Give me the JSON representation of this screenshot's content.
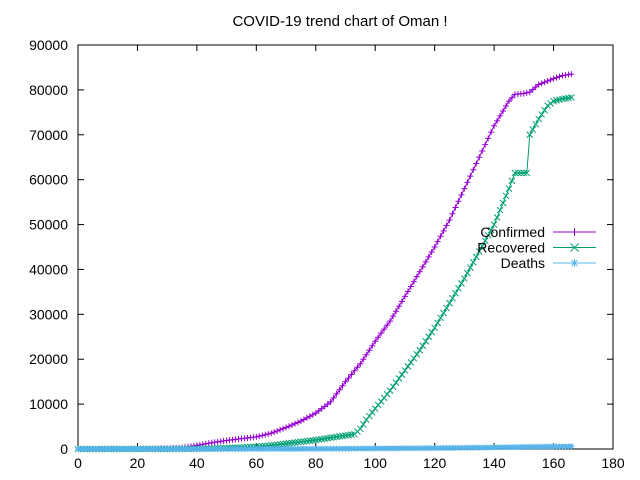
{
  "chart_data": {
    "type": "line",
    "title": "COVID-19 trend chart of Oman !",
    "xlabel": "",
    "ylabel": "",
    "xlim": [
      0,
      180
    ],
    "ylim": [
      0,
      90000
    ],
    "x_ticks": [
      "0",
      "20",
      "40",
      "60",
      "80",
      "100",
      "120",
      "140",
      "160",
      "180"
    ],
    "y_ticks": [
      "0",
      "10000",
      "20000",
      "30000",
      "40000",
      "50000",
      "60000",
      "70000",
      "80000",
      "90000"
    ],
    "grid": false,
    "legend_position": "right",
    "series": [
      {
        "name": "Confirmed",
        "color": "#9400d3",
        "marker": "plus",
        "points": [
          [
            0,
            0
          ],
          [
            10,
            20
          ],
          [
            20,
            40
          ],
          [
            30,
            150
          ],
          [
            35,
            300
          ],
          [
            40,
            800
          ],
          [
            45,
            1400
          ],
          [
            50,
            1900
          ],
          [
            55,
            2300
          ],
          [
            60,
            2700
          ],
          [
            65,
            3500
          ],
          [
            70,
            4800
          ],
          [
            75,
            6200
          ],
          [
            80,
            8000
          ],
          [
            85,
            10500
          ],
          [
            90,
            15000
          ],
          [
            95,
            19000
          ],
          [
            100,
            24000
          ],
          [
            105,
            28500
          ],
          [
            110,
            34000
          ],
          [
            115,
            39500
          ],
          [
            120,
            45000
          ],
          [
            125,
            51000
          ],
          [
            130,
            58000
          ],
          [
            135,
            65000
          ],
          [
            140,
            72000
          ],
          [
            145,
            77500
          ],
          [
            147,
            79000
          ],
          [
            150,
            79200
          ],
          [
            152,
            79500
          ],
          [
            155,
            81200
          ],
          [
            160,
            82500
          ],
          [
            163,
            83200
          ],
          [
            166,
            83500
          ]
        ]
      },
      {
        "name": "Recovered",
        "color": "#009e73",
        "marker": "cross",
        "points": [
          [
            0,
            0
          ],
          [
            30,
            0
          ],
          [
            40,
            50
          ],
          [
            50,
            200
          ],
          [
            60,
            500
          ],
          [
            65,
            800
          ],
          [
            70,
            1200
          ],
          [
            75,
            1600
          ],
          [
            80,
            2000
          ],
          [
            85,
            2500
          ],
          [
            90,
            3000
          ],
          [
            93,
            3300
          ],
          [
            95,
            4500
          ],
          [
            97,
            6500
          ],
          [
            100,
            9000
          ],
          [
            105,
            13000
          ],
          [
            110,
            17500
          ],
          [
            115,
            22000
          ],
          [
            120,
            27000
          ],
          [
            125,
            32500
          ],
          [
            130,
            38000
          ],
          [
            135,
            44000
          ],
          [
            140,
            50000
          ],
          [
            145,
            58000
          ],
          [
            147,
            61500
          ],
          [
            151,
            61500
          ],
          [
            152,
            70000
          ],
          [
            155,
            73500
          ],
          [
            158,
            76500
          ],
          [
            160,
            77500
          ],
          [
            163,
            78000
          ],
          [
            166,
            78300
          ]
        ]
      },
      {
        "name": "Deaths",
        "color": "#56b4e9",
        "marker": "star",
        "points": [
          [
            0,
            0
          ],
          [
            40,
            5
          ],
          [
            60,
            20
          ],
          [
            80,
            40
          ],
          [
            100,
            120
          ],
          [
            120,
            200
          ],
          [
            140,
            350
          ],
          [
            150,
            450
          ],
          [
            160,
            530
          ],
          [
            166,
            580
          ]
        ]
      }
    ]
  }
}
